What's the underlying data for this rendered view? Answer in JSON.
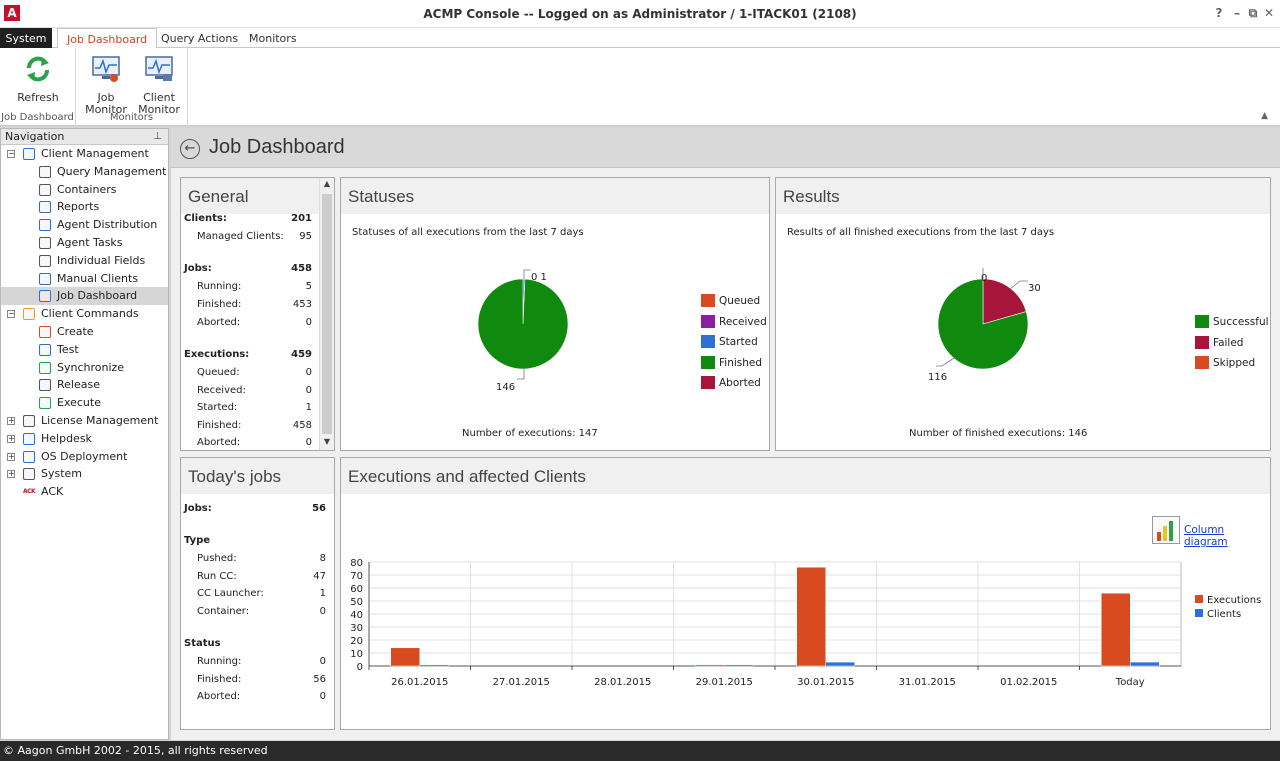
{
  "window": {
    "title": "ACMP Console -- Logged on as Administrator / 1-ITACK01 (2108)",
    "help": "?",
    "minimize": "–",
    "restore": "⧉",
    "close": "✕"
  },
  "tabs": [
    {
      "label": "System"
    },
    {
      "label": "Job Dashboard"
    },
    {
      "label": "Query Actions"
    },
    {
      "label": "Monitors"
    }
  ],
  "ribbon": {
    "refresh_label": "Refresh",
    "group1_label": "Job Dashboard",
    "job_monitor_line1": "Job",
    "job_monitor_line2": "Monitor",
    "client_monitor_line1": "Client",
    "client_monitor_line2": "Monitor",
    "group2_label": "Monitors"
  },
  "nav": {
    "title": "Navigation",
    "items": [
      {
        "label": "Client Management",
        "expander": "−"
      },
      {
        "label": "Query Management"
      },
      {
        "label": "Containers"
      },
      {
        "label": "Reports"
      },
      {
        "label": "Agent Distribution"
      },
      {
        "label": "Agent Tasks"
      },
      {
        "label": "Individual Fields"
      },
      {
        "label": "Manual Clients"
      },
      {
        "label": "Job Dashboard"
      },
      {
        "label": "Client Commands",
        "expander": "−"
      },
      {
        "label": "Create"
      },
      {
        "label": "Test"
      },
      {
        "label": "Synchronize"
      },
      {
        "label": "Release"
      },
      {
        "label": "Execute"
      },
      {
        "label": "License Management",
        "expander": "+"
      },
      {
        "label": "Helpdesk",
        "expander": "+"
      },
      {
        "label": "OS Deployment",
        "expander": "+"
      },
      {
        "label": "System",
        "expander": "+"
      },
      {
        "label": "ACK",
        "logo": "ACK"
      }
    ]
  },
  "page": {
    "title": "Job Dashboard"
  },
  "general": {
    "title": "General",
    "clients_label": "Clients:",
    "clients_value": "201",
    "managed_label": "Managed Clients:",
    "managed_value": "95",
    "jobs_label": "Jobs:",
    "jobs_value": "458",
    "running_label": "Running:",
    "running_value": "5",
    "finished_label": "Finished:",
    "finished_value": "453",
    "aborted_label": "Aborted:",
    "aborted_value": "0",
    "exec_label": "Executions:",
    "exec_value": "459",
    "queued_label": "Queued:",
    "queued_value": "0",
    "received_label": "Received:",
    "received_value": "0",
    "started_label": "Started:",
    "started_value": "1",
    "efinished_label": "Finished:",
    "efinished_value": "458",
    "eaborted_label": "Aborted:",
    "eaborted_value": "0"
  },
  "today": {
    "title": "Today's jobs",
    "jobs_label": "Jobs:",
    "jobs_value": "56",
    "type_label": "Type",
    "pushed_label": "Pushed:",
    "pushed_value": "8",
    "runcc_label": "Run CC:",
    "runcc_value": "47",
    "launcher_label": "CC Launcher:",
    "launcher_value": "1",
    "container_label": "Container:",
    "container_value": "0",
    "status_label": "Status",
    "running_label": "Running:",
    "running_value": "0",
    "finished_label": "Finished:",
    "finished_value": "56",
    "aborted_label": "Aborted:",
    "aborted_value": "0"
  },
  "statuses": {
    "title": "Statuses",
    "subtitle": "Statuses of all executions from the last 7 days",
    "label_top": "0 1",
    "label_bottom": "146",
    "footer": "Number of executions:  147",
    "legend": [
      {
        "label": "Queued",
        "color": "#d84a1f"
      },
      {
        "label": "Received",
        "color": "#8a1fa0"
      },
      {
        "label": "Started",
        "color": "#2f6fd8"
      },
      {
        "label": "Finished",
        "color": "#0f8a0f"
      },
      {
        "label": "Aborted",
        "color": "#a8153a"
      }
    ]
  },
  "results": {
    "title": "Results",
    "subtitle": "Results of all finished executions from the last 7 days",
    "label_top": "0",
    "label_right": "30",
    "label_left": "116",
    "footer": "Number of finished executions:  146",
    "legend": [
      {
        "label": "Successful",
        "color": "#0f8a0f"
      },
      {
        "label": "Failed",
        "color": "#a8153a"
      },
      {
        "label": "Skipped",
        "color": "#d84a1f"
      }
    ]
  },
  "executions": {
    "title": "Executions and affected Clients",
    "link_label": "Column diagram"
  },
  "chart_data": [
    {
      "type": "pie",
      "title": "Statuses",
      "labels": [
        "Queued",
        "Received",
        "Started",
        "Finished",
        "Aborted"
      ],
      "values": [
        0,
        0,
        1,
        146,
        0
      ]
    },
    {
      "type": "pie",
      "title": "Results",
      "labels": [
        "Successful",
        "Failed",
        "Skipped"
      ],
      "values": [
        116,
        30,
        0
      ]
    },
    {
      "type": "bar",
      "title": "Executions and affected Clients",
      "categories": [
        "26.01.2015",
        "27.01.2015",
        "28.01.2015",
        "29.01.2015",
        "30.01.2015",
        "31.01.2015",
        "01.02.2015",
        "Today"
      ],
      "series": [
        {
          "name": "Executions",
          "color": "#d84a1f",
          "values": [
            14,
            0,
            0,
            1,
            76,
            0,
            0,
            56
          ]
        },
        {
          "name": "Clients",
          "color": "#2f6fd8",
          "values": [
            1,
            0,
            0,
            1,
            3,
            0,
            0,
            3
          ]
        }
      ],
      "ylim": [
        0,
        80
      ],
      "yticks": [
        0,
        10,
        20,
        30,
        40,
        50,
        60,
        70,
        80
      ]
    }
  ],
  "statusbar": {
    "text": "© Aagon GmbH 2002 - 2015, all rights reserved"
  }
}
